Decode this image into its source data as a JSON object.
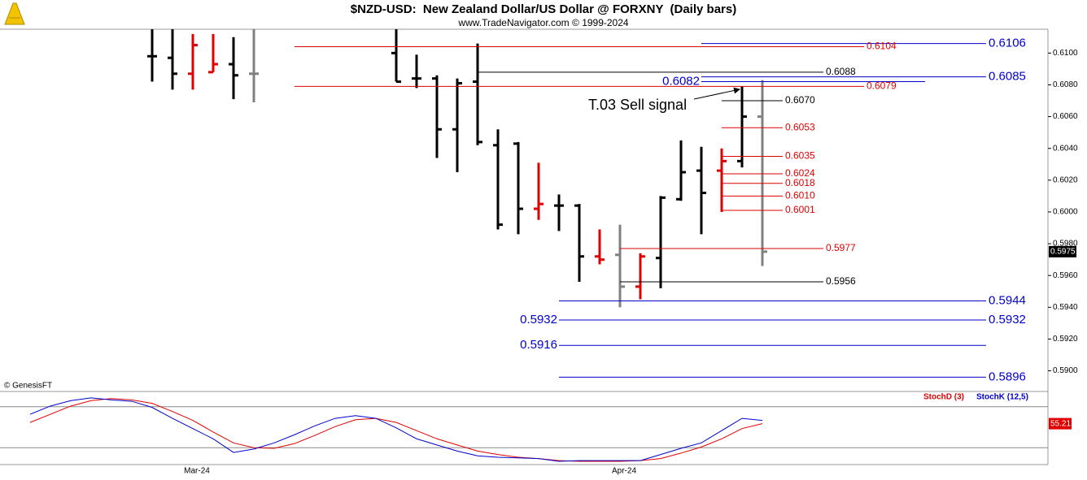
{
  "chart_data": [
    {
      "type": "ohlc",
      "title": "$NZD-USD:  New Zealand Dollar/US Dollar @ FORXNY  (Daily bars)",
      "subtitle": "www.TradeNavigator.com © 1999-2024",
      "copyright": "© GenesisFT",
      "annotation": "T.03 Sell signal",
      "categories": [
        null,
        null,
        null,
        null,
        null,
        null,
        null,
        null,
        "Mar-24",
        null,
        null,
        null,
        null,
        null,
        null,
        null,
        null,
        null,
        null,
        null,
        null,
        null,
        null,
        null,
        null,
        null,
        null,
        null,
        null,
        "Apr-24",
        null,
        null,
        null,
        null,
        null,
        null,
        null
      ],
      "open": [
        null,
        null,
        null,
        null,
        null,
        null,
        0.6098,
        0.6097,
        0.6087,
        0.6088,
        0.6093,
        0.6087,
        null,
        null,
        null,
        null,
        null,
        null,
        0.61,
        0.6084,
        0.6084,
        0.6052,
        0.6082,
        0.6042,
        0.6043,
        0.6002,
        0.6004,
        0.6004,
        0.5972,
        0.5973,
        0.5953,
        0.5971,
        0.6008,
        0.6026,
        0.6026,
        0.6032,
        0.606
      ],
      "high": [
        null,
        null,
        null,
        null,
        null,
        null,
        0.612,
        0.612,
        0.6112,
        0.6112,
        0.611,
        0.612,
        null,
        null,
        null,
        null,
        null,
        null,
        0.612,
        0.6099,
        0.6086,
        0.6084,
        0.6106,
        0.6052,
        0.6044,
        0.6031,
        0.6011,
        0.6005,
        0.5989,
        0.5992,
        0.5974,
        0.601,
        0.6045,
        0.6041,
        0.604,
        0.6079,
        0.6083
      ],
      "low": [
        null,
        null,
        null,
        null,
        null,
        null,
        0.6082,
        0.6077,
        0.6077,
        0.6088,
        0.6071,
        0.6069,
        null,
        null,
        null,
        null,
        null,
        null,
        0.6082,
        0.6078,
        0.6034,
        0.6025,
        0.6042,
        0.5989,
        0.5986,
        0.5995,
        0.5988,
        0.5956,
        0.5967,
        0.594,
        0.5945,
        0.5952,
        0.6007,
        0.5986,
        0.6,
        0.6028,
        0.5966
      ],
      "close": [
        null,
        null,
        null,
        null,
        null,
        null,
        0.6098,
        0.6087,
        0.6105,
        0.6093,
        0.6086,
        0.6087,
        null,
        null,
        null,
        null,
        null,
        null,
        0.6082,
        0.6084,
        0.6052,
        0.6081,
        0.6044,
        0.5992,
        0.6002,
        0.6005,
        0.6004,
        0.5972,
        0.597,
        0.5953,
        0.5972,
        0.6009,
        0.6025,
        0.6012,
        0.6032,
        0.606,
        0.5975
      ],
      "colors": [
        null,
        null,
        null,
        null,
        null,
        null,
        "#000000",
        "#000000",
        "#e00000",
        "#e00000",
        "#000000",
        "#808080",
        null,
        null,
        null,
        null,
        null,
        null,
        "#000000",
        "#000000",
        "#000000",
        "#000000",
        "#000000",
        "#000000",
        "#000000",
        "#e00000",
        "#000000",
        "#000000",
        "#e00000",
        "#808080",
        "#e00000",
        "#000000",
        "#000000",
        "#000000",
        "#e00000",
        "#000000",
        "#808080"
      ],
      "ylim": [
        0.5887,
        0.6115
      ],
      "yticks": [
        {
          "value": 0.59,
          "label": "0.5900"
        },
        {
          "value": 0.592,
          "label": "0.5920"
        },
        {
          "value": 0.594,
          "label": "0.5940"
        },
        {
          "value": 0.596,
          "label": "0.5960"
        },
        {
          "value": 0.598,
          "label": "0.5980"
        },
        {
          "value": 0.6,
          "label": "0.6000"
        },
        {
          "value": 0.602,
          "label": "0.6020"
        },
        {
          "value": 0.604,
          "label": "0.6040"
        },
        {
          "value": 0.606,
          "label": "0.6060"
        },
        {
          "value": 0.608,
          "label": "0.6080"
        },
        {
          "value": 0.61,
          "label": "0.6100"
        }
      ],
      "levels": [
        {
          "value": 0.6106,
          "label": "0.6106",
          "color": "#0000cc"
        },
        {
          "value": 0.6104,
          "label": "0.6104",
          "color": "#e00000"
        },
        {
          "value": 0.6088,
          "label": "0.6088",
          "color": "#000000"
        },
        {
          "value": 0.6085,
          "label": "0.6085",
          "color": "#0000cc"
        },
        {
          "value": 0.6082,
          "label": "0.6082",
          "color": "#0000cc"
        },
        {
          "value": 0.6079,
          "label": "0.6079",
          "color": "#e00000"
        },
        {
          "value": 0.607,
          "label": "0.6070",
          "color": "#000000"
        },
        {
          "value": 0.6053,
          "label": "0.6053",
          "color": "#e00000"
        },
        {
          "value": 0.6035,
          "label": "0.6035",
          "color": "#e00000"
        },
        {
          "value": 0.6024,
          "label": "0.6024",
          "color": "#e00000"
        },
        {
          "value": 0.6018,
          "label": "0.6018",
          "color": "#e00000"
        },
        {
          "value": 0.601,
          "label": "0.6010",
          "color": "#e00000"
        },
        {
          "value": 0.6001,
          "label": "0.6001",
          "color": "#e00000"
        },
        {
          "value": 0.5977,
          "label": "0.5977",
          "color": "#e00000"
        },
        {
          "value": 0.5956,
          "label": "0.5956",
          "color": "#000000"
        },
        {
          "value": 0.5944,
          "label": "0.5944",
          "color": "#0000cc"
        },
        {
          "value": 0.5932,
          "label": "0.5932",
          "color": "#0000cc"
        },
        {
          "value": 0.5916,
          "label": "0.5916",
          "color": "#0000cc"
        },
        {
          "value": 0.5896,
          "label": "0.5896",
          "color": "#0000cc"
        }
      ]
    },
    {
      "type": "line",
      "ylim": [
        0,
        100
      ],
      "yticks": [
        20,
        80
      ],
      "series": [
        {
          "name": "StochD (3)",
          "color": "#e00000",
          "values": [
            57,
            69,
            81,
            89,
            92,
            90,
            85,
            73,
            60,
            43,
            27,
            20,
            19,
            26,
            38,
            51,
            61,
            63,
            57,
            45,
            33,
            24,
            15,
            10,
            6,
            4,
            1,
            0,
            0,
            0,
            1,
            4,
            12,
            21,
            33,
            48,
            55.21
          ]
        },
        {
          "name": "StochK (12,5)",
          "color": "#0000cc",
          "values": [
            69,
            81,
            89,
            93,
            90,
            88,
            79,
            63,
            48,
            33,
            13,
            18,
            27,
            39,
            52,
            63,
            67,
            63,
            49,
            33,
            24,
            15,
            8,
            6,
            5,
            4,
            0,
            1,
            1,
            1,
            1,
            10,
            19,
            27,
            45,
            63,
            60
          ]
        }
      ]
    }
  ]
}
